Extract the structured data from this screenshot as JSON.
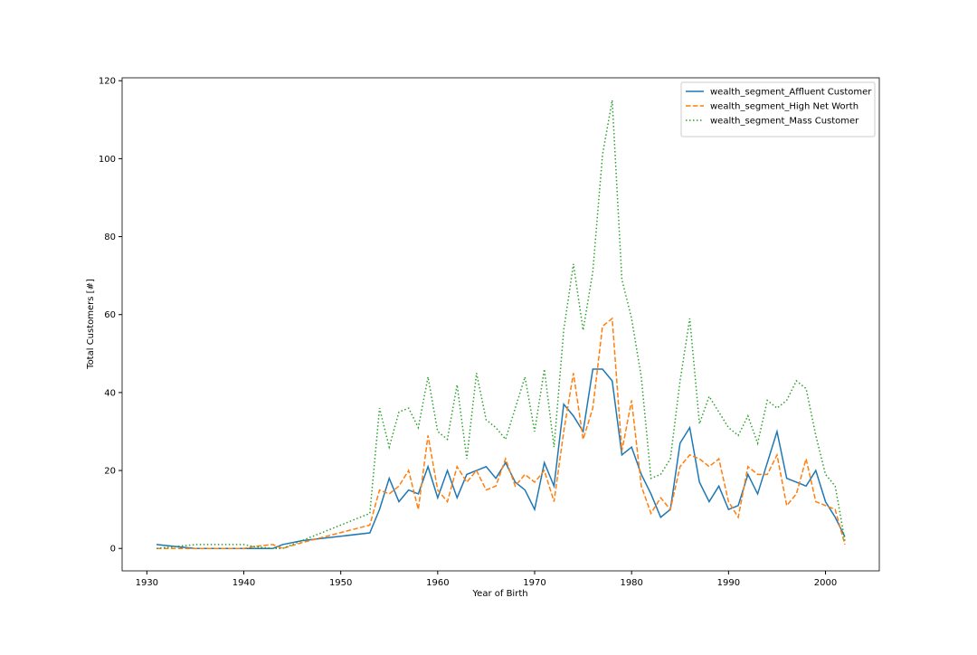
{
  "chart_data": {
    "type": "line",
    "xlabel": "Year of Birth",
    "ylabel": "Total Customers [#]",
    "x": [
      1931,
      1933,
      1935,
      1939,
      1940,
      1941,
      1943,
      1944,
      1946,
      1953,
      1954,
      1955,
      1956,
      1957,
      1958,
      1959,
      1960,
      1961,
      1962,
      1963,
      1964,
      1965,
      1966,
      1967,
      1968,
      1969,
      1970,
      1971,
      1972,
      1973,
      1974,
      1975,
      1976,
      1977,
      1978,
      1979,
      1980,
      1981,
      1982,
      1983,
      1984,
      1985,
      1986,
      1987,
      1988,
      1989,
      1990,
      1991,
      1992,
      1993,
      1994,
      1995,
      1996,
      1997,
      1998,
      1999,
      2000,
      2001,
      2002
    ],
    "series": [
      {
        "name": "wealth_segment_Affluent Customer",
        "color": "#1f77b4",
        "dash": "solid",
        "values": [
          1,
          0.5,
          0,
          0,
          0,
          0,
          0,
          1,
          2,
          4,
          10,
          18,
          12,
          15,
          14,
          21,
          13,
          20,
          13,
          19,
          20,
          21,
          18,
          22,
          17,
          15,
          10,
          22,
          16,
          37,
          34,
          30,
          46,
          46,
          43,
          24,
          26,
          19,
          14,
          8,
          10,
          27,
          31,
          17,
          12,
          16,
          10,
          11,
          19,
          14,
          22,
          30,
          18,
          17,
          16,
          20,
          12,
          8,
          3
        ]
      },
      {
        "name": "wealth_segment_High Net Worth",
        "color": "#ff7f0e",
        "dash": "dashed",
        "values": [
          0,
          0,
          0,
          0,
          0,
          0.5,
          1,
          0,
          1.5,
          6,
          15,
          14,
          16,
          20,
          10,
          29,
          15,
          12,
          21,
          17,
          20,
          15,
          16,
          23,
          16,
          19,
          17,
          20,
          12,
          30,
          45,
          28,
          36,
          57,
          59,
          25,
          38,
          16,
          9,
          13,
          10,
          21,
          24,
          23,
          21,
          23,
          12,
          8,
          21,
          19,
          19,
          24,
          11,
          14,
          23,
          12,
          11,
          10,
          1
        ]
      },
      {
        "name": "wealth_segment_Mass Customer",
        "color": "#2ca02c",
        "dash": "dotted",
        "values": [
          0,
          0.5,
          1,
          1,
          1,
          0.5,
          0,
          0,
          2,
          9,
          36,
          26,
          35,
          36,
          31,
          44,
          30,
          28,
          42,
          23,
          45,
          33,
          31,
          28,
          36,
          44,
          30,
          46,
          26,
          56,
          73,
          56,
          71,
          101,
          115,
          69,
          59,
          44,
          18,
          19,
          23,
          43,
          59,
          32,
          39,
          35,
          31,
          29,
          34,
          27,
          38,
          36,
          38,
          43,
          41,
          29,
          19,
          16,
          2
        ]
      }
    ],
    "xlim": [
      1927.45,
      2005.55
    ],
    "ylim": [
      -5.75,
      120.75
    ],
    "xticks": [
      1930,
      1940,
      1950,
      1960,
      1970,
      1980,
      1990,
      2000
    ],
    "yticks": [
      0,
      20,
      40,
      60,
      80,
      100,
      120
    ],
    "grid": false,
    "legend": "upper right"
  }
}
